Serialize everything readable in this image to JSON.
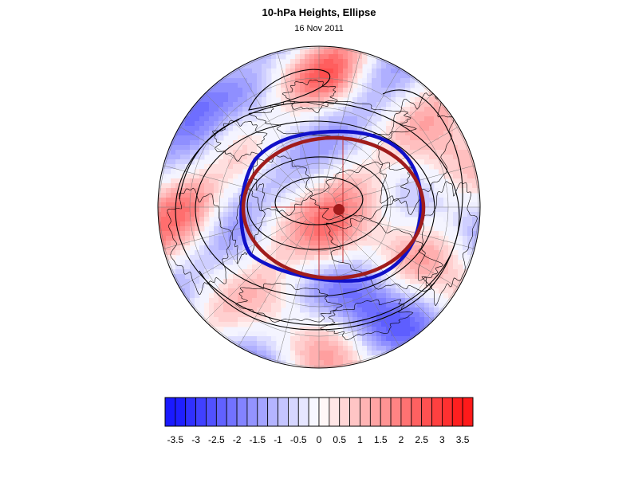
{
  "title": "10-hPa Heights, Ellipse",
  "subtitle": "16 Nov 2011",
  "colors": {
    "min": "#1a1aff",
    "mid": "#ffffff",
    "max": "#ff1a1a",
    "ellipse_blue": "#1010c8",
    "ellipse_red": "#a01c1c",
    "contour": "#000000",
    "grid": "#7a7a7a"
  },
  "colorbar": {
    "levels": [
      -3.75,
      -3.5,
      -3.25,
      -3,
      -2.75,
      -2.5,
      -2.25,
      -2,
      -1.75,
      -1.5,
      -1.25,
      -1,
      -0.75,
      -0.5,
      -0.25,
      0,
      0.25,
      0.5,
      0.75,
      1,
      1.25,
      1.5,
      1.75,
      2,
      2.25,
      2.5,
      2.75,
      3,
      3.25,
      3.5,
      3.75
    ],
    "tick_labels": [
      "-3.5",
      "-3",
      "-2.5",
      "-2",
      "-1.5",
      "-1",
      "-0.5",
      "0",
      "0.5",
      "1",
      "1.5",
      "2",
      "2.5",
      "3",
      "3.5"
    ]
  },
  "map": {
    "projection": "polar-stereographic",
    "hemisphere": "northern"
  }
}
